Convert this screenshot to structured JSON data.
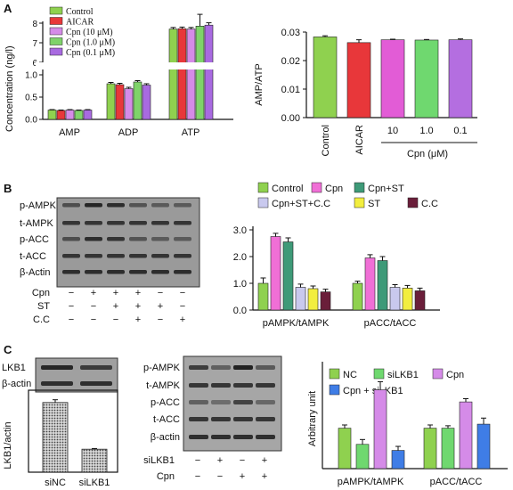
{
  "panel_letters": [
    "A",
    "B",
    "C"
  ],
  "colors": {
    "green": "#8fd14f",
    "red": "#e8373a",
    "magenta": "#e25cd6",
    "violet": "#b46ee0",
    "lightgreen": "#6fd86f",
    "pink": "#f06fd6",
    "teal": "#3e9a78",
    "lavender": "#c9c9ee",
    "yellow": "#f2ee3f",
    "maroon": "#6a1e3a",
    "blue": "#3f7de6"
  },
  "chart_data": [
    {
      "id": "A-left",
      "type": "bar",
      "ylabel": "Concentration (ng/l)",
      "categories": [
        "AMP",
        "ADP",
        "ATP"
      ],
      "broken_axis": true,
      "lower_ylim": [
        0,
        1.0
      ],
      "lower_ticks": [
        "0.0",
        "0.5",
        "1.0"
      ],
      "upper_ylim": [
        6,
        8
      ],
      "upper_ticks": [
        "6",
        "7",
        "8"
      ],
      "series": [
        {
          "name": "Control",
          "color": "#8fd14f",
          "values": [
            0.21,
            0.8,
            7.7
          ],
          "errors": [
            0.01,
            0.03,
            0.08
          ]
        },
        {
          "name": "AICAR",
          "color": "#e8373a",
          "values": [
            0.2,
            0.78,
            7.72
          ],
          "errors": [
            0.01,
            0.03,
            0.08
          ]
        },
        {
          "name": "Cpn (10 μM)",
          "color": "#d58be8",
          "values": [
            0.21,
            0.69,
            7.7
          ],
          "errors": [
            0.01,
            0.03,
            0.08
          ]
        },
        {
          "name": "Cpn (1.0 μM)",
          "color": "#7fd36a",
          "values": [
            0.2,
            0.84,
            7.85
          ],
          "errors": [
            0.01,
            0.03,
            0.6
          ]
        },
        {
          "name": "Cpn (0.1 μM)",
          "color": "#a86ae0",
          "values": [
            0.21,
            0.77,
            7.9
          ],
          "errors": [
            0.01,
            0.03,
            0.12
          ]
        }
      ]
    },
    {
      "id": "A-right",
      "type": "bar",
      "ylabel": "AMP/ATP",
      "categories": [
        "Control",
        "AICAR",
        "10",
        "1.0",
        "0.1"
      ],
      "group_label": "Cpn (μM)",
      "ylim": [
        0,
        0.03
      ],
      "yticks": [
        "0.00",
        "0.01",
        "0.02",
        "0.03"
      ],
      "colors": [
        "#8fd14f",
        "#e8373a",
        "#e25cd6",
        "#6fd86f",
        "#b46ee0"
      ],
      "values": [
        0.0283,
        0.0263,
        0.0273,
        0.0272,
        0.0273
      ],
      "errors": [
        0.0004,
        0.001,
        0.0002,
        0.0002,
        0.0003
      ]
    },
    {
      "id": "B-right",
      "type": "bar",
      "categories": [
        "pAMPK/tAMPK",
        "pACC/tACC"
      ],
      "ylim": [
        0,
        3.0
      ],
      "yticks": [
        "0.0",
        "1.0",
        "2.0",
        "3.0"
      ],
      "series": [
        {
          "name": "Control",
          "color": "#8fd14f",
          "values": [
            1.0,
            1.0
          ],
          "errors": [
            0.2,
            0.08
          ]
        },
        {
          "name": "Cpn",
          "color": "#f06fd6",
          "values": [
            2.75,
            1.95
          ],
          "errors": [
            0.12,
            0.12
          ]
        },
        {
          "name": "Cpn+ST",
          "color": "#3e9a78",
          "values": [
            2.55,
            1.85
          ],
          "errors": [
            0.15,
            0.15
          ]
        },
        {
          "name": "Cpn+ST+C.C",
          "color": "#c9c9ee",
          "values": [
            0.85,
            0.85
          ],
          "errors": [
            0.12,
            0.1
          ]
        },
        {
          "name": "ST",
          "color": "#f2ee3f",
          "values": [
            0.8,
            0.82
          ],
          "errors": [
            0.1,
            0.1
          ]
        },
        {
          "name": "C.C",
          "color": "#6a1e3a",
          "values": [
            0.68,
            0.72
          ],
          "errors": [
            0.1,
            0.1
          ]
        }
      ]
    },
    {
      "id": "C-left",
      "type": "bar",
      "ylabel": "LKB1/actin",
      "categories": [
        "siNC",
        "siLKB1"
      ],
      "ylim": [
        0,
        1.1
      ],
      "values": [
        1.0,
        0.33
      ],
      "errors": [
        0.04,
        0.01
      ]
    },
    {
      "id": "C-right",
      "type": "bar",
      "ylabel": "Arbitrary unit",
      "categories": [
        "pAMPK/tAMPK",
        "pACC/tACC"
      ],
      "ylim": [
        0,
        2.6
      ],
      "series": [
        {
          "name": "NC",
          "color": "#8fd14f",
          "values": [
            1.0,
            1.0
          ],
          "errors": [
            0.08,
            0.08
          ]
        },
        {
          "name": "siLKB1",
          "color": "#6fd86f",
          "values": [
            0.6,
            1.0
          ],
          "errors": [
            0.12,
            0.06
          ]
        },
        {
          "name": "Cpn",
          "color": "#d58be8",
          "values": [
            1.95,
            1.65
          ],
          "errors": [
            0.2,
            0.08
          ]
        },
        {
          "name": "Cpn + siLKB1",
          "color": "#3f7de6",
          "values": [
            0.45,
            1.1
          ],
          "errors": [
            0.1,
            0.15
          ]
        }
      ]
    }
  ],
  "blot_B": {
    "labels": [
      "p-AMPK",
      "t-AMPK",
      "p-ACC",
      "t-ACC",
      "β-Actin"
    ],
    "rows": [
      {
        "label": "Cpn",
        "signs": [
          "−",
          "+",
          "+",
          "+",
          "−",
          "−"
        ]
      },
      {
        "label": "ST",
        "signs": [
          "−",
          "−",
          "+",
          "+",
          "+",
          "−"
        ]
      },
      {
        "label": "C.C",
        "signs": [
          "−",
          "−",
          "−",
          "+",
          "−",
          "+"
        ]
      }
    ]
  },
  "blot_C_left": {
    "labels": [
      "LKB1",
      "β-actin"
    ]
  },
  "blot_C_mid": {
    "labels": [
      "p-AMPK",
      "t-AMPK",
      "p-ACC",
      "t-ACC",
      "β-actin"
    ],
    "rows": [
      {
        "label": "siLKB1",
        "signs": [
          "−",
          "+",
          "−",
          "+"
        ]
      },
      {
        "label": "Cpn",
        "signs": [
          "−",
          "−",
          "+",
          "+"
        ]
      }
    ]
  }
}
